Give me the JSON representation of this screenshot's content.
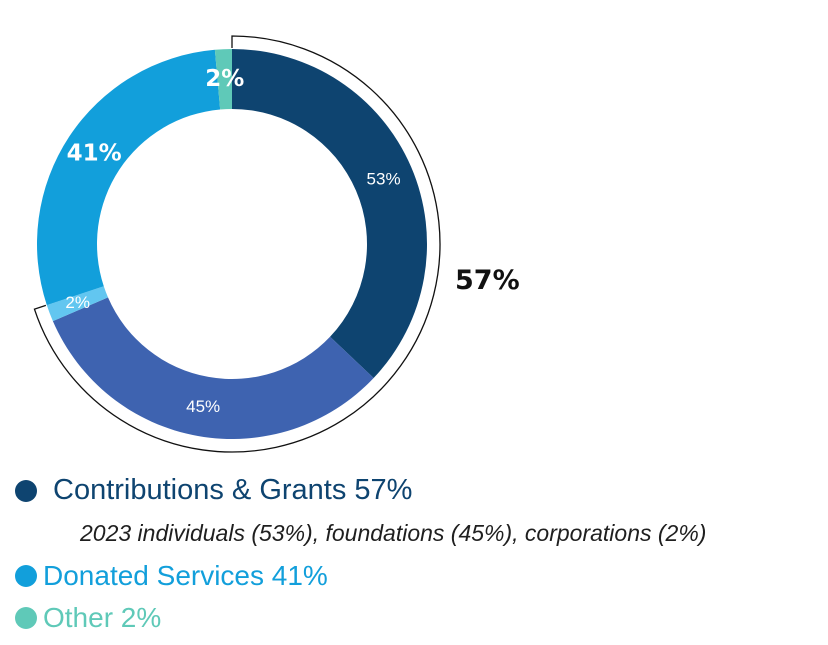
{
  "chart_data": {
    "type": "pie",
    "variant": "donut",
    "slices": [
      {
        "label": "53%",
        "value": 53,
        "color": "#0e4470",
        "label_color": "#ffffff",
        "label_style": "plain"
      },
      {
        "label": "45%",
        "value": 45,
        "color": "#3e63b0",
        "label_color": "#ffffff",
        "label_style": "plain"
      },
      {
        "label": "2%",
        "value": 2,
        "color": "#62c6f0",
        "label_color": "#ffffff",
        "label_style": "plain"
      },
      {
        "label": "41%",
        "value": 41,
        "color": "#129fdb",
        "label_color": "#ffffff",
        "label_style": "bold"
      },
      {
        "label": "2%",
        "value": 2,
        "color": "#5fc9b8",
        "label_color": "#ffffff",
        "label_style": "bold"
      }
    ],
    "group_bracket": {
      "label": "57%",
      "spans_slices": [
        0,
        1,
        2
      ],
      "color": "#111111"
    }
  },
  "legend": {
    "contributions": {
      "label": "Contributions & Grants 57%",
      "color": "#0e4470"
    },
    "contributions_detail": "2023 individuals (53%), foundations (45%), corporations (2%)",
    "donated": {
      "label": "Donated Services 41%",
      "color": "#129fdb"
    },
    "other": {
      "label": "Other 2%",
      "color": "#5fc9b8"
    }
  }
}
